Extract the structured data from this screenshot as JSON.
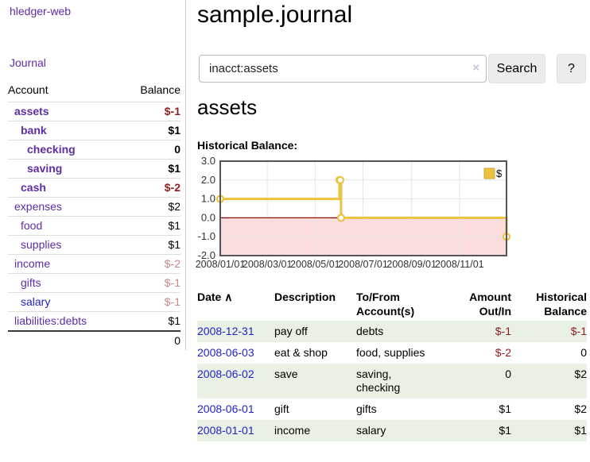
{
  "theme": {
    "link_purple": "#5e2ca5",
    "link_blue": "#2222cc",
    "negative_red": "#8e1f1f",
    "negative_pale_red": "#c98888",
    "stripe_green": "#e8f1e3",
    "series_gold": "#edc240"
  },
  "sidebar": {
    "brand": "hledger-web",
    "nav": {
      "journal": "Journal"
    },
    "table": {
      "headers": {
        "account": "Account",
        "balance": "Balance"
      },
      "rows": [
        {
          "name": "assets",
          "depth": 0,
          "bold": true,
          "link": "purple",
          "balance": "$-1",
          "balance_color": "negative"
        },
        {
          "name": "bank",
          "depth": 1,
          "bold": true,
          "link": "purple",
          "balance": "$1",
          "balance_color": "normal"
        },
        {
          "name": "checking",
          "depth": 2,
          "bold": true,
          "link": "purple",
          "balance": "0",
          "balance_color": "normal"
        },
        {
          "name": "saving",
          "depth": 2,
          "bold": true,
          "link": "purple",
          "balance": "$1",
          "balance_color": "normal"
        },
        {
          "name": "cash",
          "depth": 1,
          "bold": true,
          "link": "purple",
          "balance": "$-2",
          "balance_color": "negative"
        },
        {
          "name": "expenses",
          "depth": 0,
          "bold": false,
          "link": "purple",
          "balance": "$2",
          "balance_color": "normal"
        },
        {
          "name": "food",
          "depth": 1,
          "bold": false,
          "link": "purple",
          "balance": "$1",
          "balance_color": "normal"
        },
        {
          "name": "supplies",
          "depth": 1,
          "bold": false,
          "link": "purple",
          "balance": "$1",
          "balance_color": "normal"
        },
        {
          "name": "income",
          "depth": 0,
          "bold": false,
          "link": "purple",
          "balance": "$-2",
          "balance_color": "negative-pale"
        },
        {
          "name": "gifts",
          "depth": 1,
          "bold": false,
          "link": "purple",
          "balance": "$-1",
          "balance_color": "negative-pale"
        },
        {
          "name": "salary",
          "depth": 1,
          "bold": false,
          "link": "blue",
          "balance": "$-1",
          "balance_color": "negative-pale"
        },
        {
          "name": "liabilities:debts",
          "depth": 0,
          "bold": false,
          "link": "purple",
          "balance": "$1",
          "balance_color": "normal"
        }
      ],
      "total": "0"
    }
  },
  "main": {
    "title": "sample.journal",
    "search": {
      "value": "inacct:assets",
      "clear_icon": "×",
      "button": "Search",
      "help_button": "?"
    },
    "account_heading": "assets",
    "chart_label": "Historical Balance:",
    "transactions": {
      "headers": {
        "date": "Date",
        "sort_icon": "∧",
        "description": "Description",
        "tofrom": "To/From\nAccount(s)",
        "amount": "Amount\nOut/In",
        "balance": "Historical\nBalance"
      },
      "rows": [
        {
          "date": "2008-12-31",
          "description": "pay off",
          "accounts": "debts",
          "amount": "$-1",
          "amount_neg": true,
          "balance": "$-1",
          "balance_neg": true
        },
        {
          "date": "2008-06-03",
          "description": "eat & shop",
          "accounts": "food, supplies",
          "amount": "$-2",
          "amount_neg": true,
          "balance": "0",
          "balance_neg": false
        },
        {
          "date": "2008-06-02",
          "description": "save",
          "accounts": "saving, checking",
          "amount": "0",
          "amount_neg": false,
          "balance": "$2",
          "balance_neg": false
        },
        {
          "date": "2008-06-01",
          "description": "gift",
          "accounts": "gifts",
          "amount": "$1",
          "amount_neg": false,
          "balance": "$2",
          "balance_neg": false
        },
        {
          "date": "2008-01-01",
          "description": "income",
          "accounts": "salary",
          "amount": "$1",
          "amount_neg": false,
          "balance": "$1",
          "balance_neg": false
        }
      ]
    }
  },
  "chart_data": {
    "type": "line",
    "step": true,
    "title": "Historical Balance",
    "series": [
      {
        "name": "$",
        "color": "#edc240",
        "points": [
          [
            "2008-01-01",
            1
          ],
          [
            "2008-06-01",
            2
          ],
          [
            "2008-06-02",
            2
          ],
          [
            "2008-06-03",
            0
          ],
          [
            "2008-12-31",
            -1
          ]
        ]
      }
    ],
    "xlim": [
      "2008-01-01",
      "2008-12-31"
    ],
    "ylim": [
      -2,
      3
    ],
    "yticks": [
      3,
      2,
      1,
      0,
      -1,
      -2
    ],
    "xticks": [
      {
        "date": "2008-01-01",
        "label": "2008/01/01"
      },
      {
        "date": "2008-03-01",
        "label": "2008/03/01"
      },
      {
        "date": "2008-05-01",
        "label": "2008/05/01"
      },
      {
        "date": "2008-07-01",
        "label": "2008/07/01"
      },
      {
        "date": "2008-09-01",
        "label": "2008/09/01"
      },
      {
        "date": "2008-11-01",
        "label": "2008/11/01"
      }
    ],
    "legend": {
      "label": "$",
      "position": "top-right"
    },
    "grid": true,
    "negative_region_color": "#fbdcdc",
    "zero_line_color": "#8b0000",
    "grid_color": "#e5e5e5",
    "border_color": "#545454"
  }
}
